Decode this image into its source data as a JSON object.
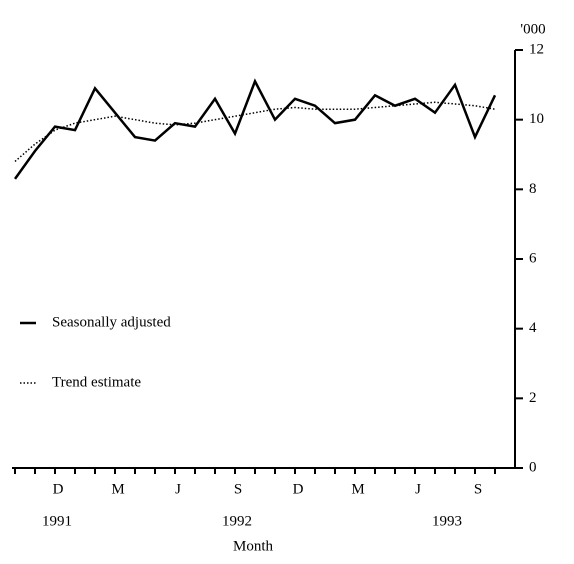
{
  "chart_data": {
    "type": "line",
    "unit_label": "'000",
    "x_label": "Month",
    "categories": [
      null,
      null,
      "D",
      null,
      null,
      "M",
      null,
      null,
      "J",
      null,
      null,
      "S",
      null,
      null,
      "D",
      null,
      null,
      "M",
      null,
      null,
      "J",
      null,
      null,
      "S",
      null
    ],
    "x_groups": [
      {
        "label": "1991",
        "at": 2
      },
      {
        "label": "1992",
        "at": 11
      },
      {
        "label": "1993",
        "at": 21.5
      }
    ],
    "series": [
      {
        "name": "Seasonally adjusted",
        "color": "#000000",
        "style": "solid",
        "values": [
          8.3,
          9.1,
          9.8,
          9.7,
          10.9,
          10.2,
          9.5,
          9.4,
          9.9,
          9.8,
          10.6,
          9.6,
          11.1,
          10.0,
          10.6,
          10.4,
          9.9,
          10.0,
          10.7,
          10.4,
          10.6,
          10.2,
          11.0,
          9.5,
          10.7
        ]
      },
      {
        "name": "Trend estimate",
        "color": "#000000",
        "style": "dotted",
        "values": [
          8.8,
          9.3,
          9.7,
          9.9,
          10.0,
          10.1,
          10.0,
          9.9,
          9.85,
          9.9,
          10.0,
          10.1,
          10.2,
          10.3,
          10.35,
          10.3,
          10.3,
          10.3,
          10.35,
          10.4,
          10.45,
          10.5,
          10.45,
          10.4,
          10.3
        ]
      }
    ],
    "ylim": [
      0,
      12
    ],
    "yticks": [
      0,
      2,
      4,
      6,
      8,
      10,
      12
    ],
    "y_axis_side": "right",
    "legend": "left",
    "grid": false
  }
}
